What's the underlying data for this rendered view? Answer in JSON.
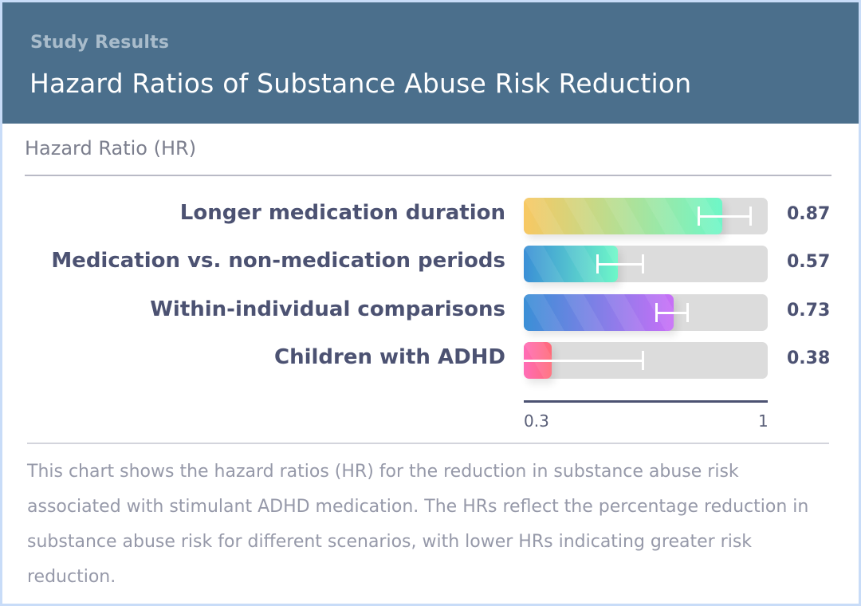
{
  "header": {
    "kicker": "Study Results",
    "title": "Hazard Ratios of Substance Abuse Risk Reduction"
  },
  "chart_data": {
    "type": "bar",
    "orientation": "horizontal",
    "title": "Hazard Ratios of Substance Abuse Risk Reduction",
    "xlabel": "Hazard Ratio (HR)",
    "ylabel": "",
    "xlim": [
      0.3,
      1
    ],
    "x_ticks": [
      "0.3",
      "1"
    ],
    "grid": false,
    "categories": [
      "Longer medication duration",
      "Medication vs. non-medication periods",
      "Within-individual comparisons",
      "Children with ADHD"
    ],
    "values": [
      0.87,
      0.57,
      0.73,
      0.38
    ],
    "value_labels": [
      "0.87",
      "0.57",
      "0.73",
      "0.38"
    ],
    "error_bars": [
      {
        "low": 0.8,
        "high": 0.95
      },
      {
        "low": 0.51,
        "high": 0.64
      },
      {
        "low": 0.68,
        "high": 0.77
      },
      {
        "low": 0.22,
        "high": 0.64
      }
    ],
    "bar_gradients": [
      [
        "#f8c862",
        "#6ef7c8"
      ],
      [
        "#3a8fd6",
        "#6ef7c8"
      ],
      [
        "#3a8fd6",
        "#c86ff7"
      ],
      [
        "#ff6cb7",
        "#ff6b78"
      ]
    ]
  },
  "description": "This chart shows the hazard ratios (HR) for the reduction in substance abuse risk associated with stimulant ADHD medication. The HRs reflect the percentage reduction in substance abuse risk for different scenarios, with lower HRs indicating greater risk reduction."
}
